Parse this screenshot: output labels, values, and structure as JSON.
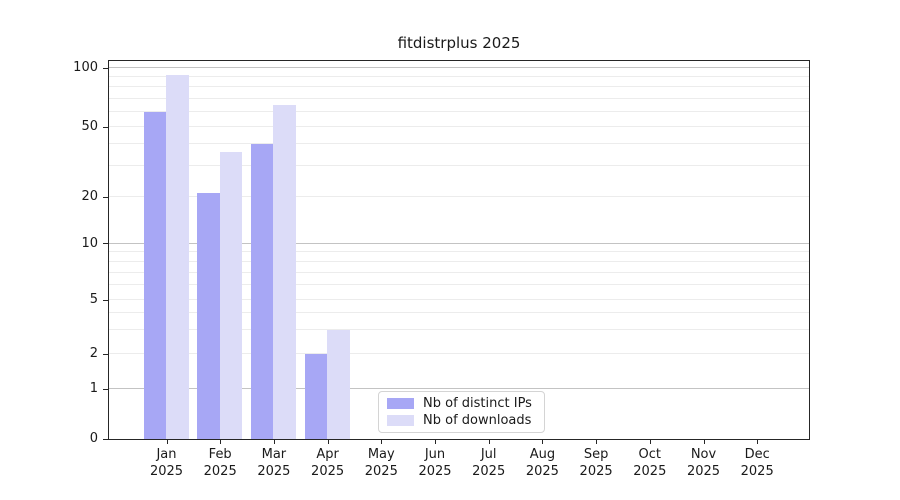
{
  "title": "fitdistrplus 2025",
  "chart_data": {
    "type": "bar",
    "title": "fitdistrplus 2025",
    "categories": [
      "Jan 2025",
      "Feb 2025",
      "Mar 2025",
      "Apr 2025",
      "May 2025",
      "Jun 2025",
      "Jul 2025",
      "Aug 2025",
      "Sep 2025",
      "Oct 2025",
      "Nov 2025",
      "Dec 2025"
    ],
    "series": [
      {
        "name": "Nb of distinct IPs",
        "color": "#a7a7f5",
        "values": [
          60,
          21,
          40,
          2,
          0,
          0,
          0,
          0,
          0,
          0,
          0,
          0
        ]
      },
      {
        "name": "Nb of downloads",
        "color": "#dcdcf8",
        "values": [
          92,
          36,
          65,
          3,
          0,
          0,
          0,
          0,
          0,
          0,
          0,
          0
        ]
      }
    ],
    "xlabel": "",
    "ylabel": "",
    "yscale": "log-like (0,1,2,5,10,20,50,100)",
    "yticks": [
      0,
      1,
      2,
      5,
      10,
      20,
      50,
      100
    ],
    "ylim": [
      0,
      112
    ],
    "major_gridline_values": [
      1,
      10,
      100
    ],
    "minor_gridline_values": [
      2,
      3,
      4,
      5,
      6,
      7,
      8,
      9,
      20,
      30,
      40,
      50,
      60,
      70,
      80,
      90
    ],
    "grid": true,
    "legend_position": "lower center inside plot"
  },
  "colors": {
    "bar_distinct_ips": "#a7a7f5",
    "bar_downloads": "#dcdcf8",
    "grid_major": "#c3c3c3",
    "grid_minor": "#ececec",
    "spine": "#262626",
    "text": "#1a1a1a",
    "legend_border": "#d4d4d4",
    "background": "#ffffff"
  },
  "legend": {
    "items": [
      {
        "label": "Nb of distinct IPs",
        "color": "#a7a7f5"
      },
      {
        "label": "Nb of downloads",
        "color": "#dcdcf8"
      }
    ]
  }
}
